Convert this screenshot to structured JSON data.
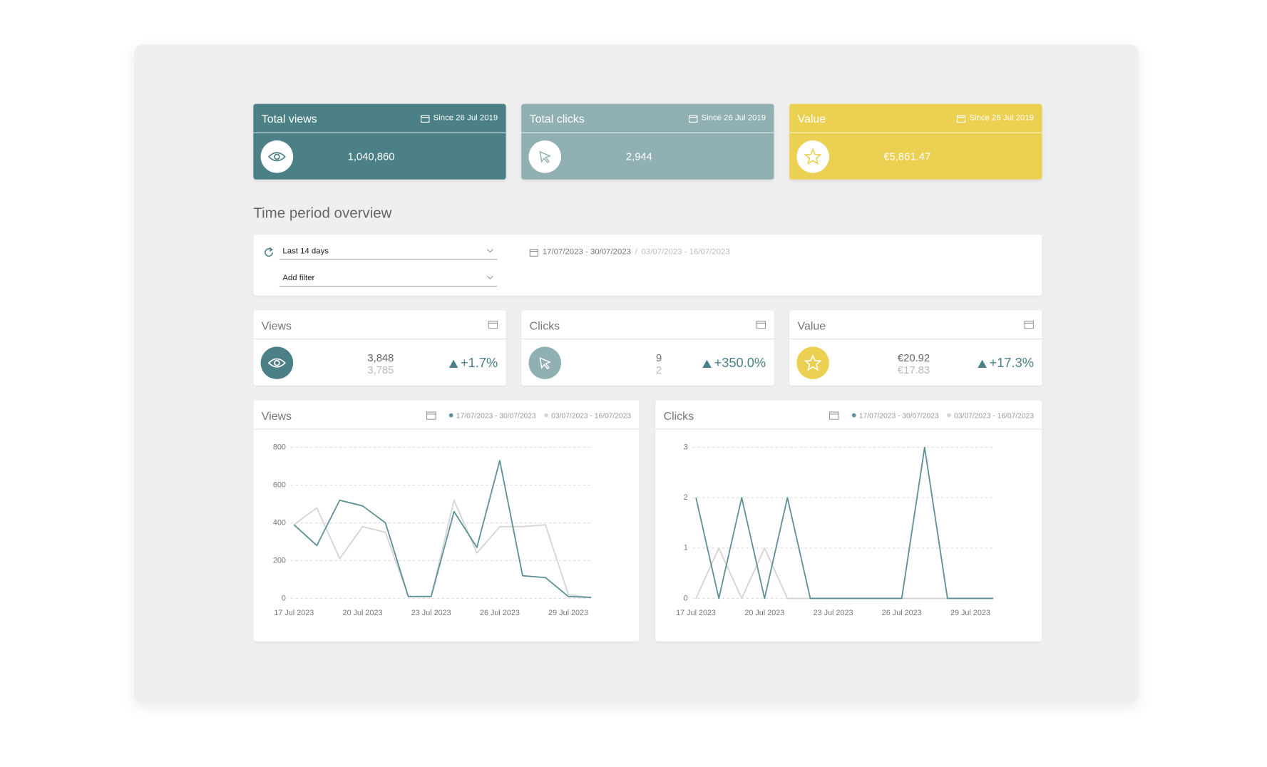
{
  "summary_cards": [
    {
      "title": "Total views",
      "since": "Since 26 Jul 2019",
      "value": "1,040,860"
    },
    {
      "title": "Total clicks",
      "since": "Since 26 Jul 2019",
      "value": "2,944"
    },
    {
      "title": "Value",
      "since": "Since 26 Jul 2019",
      "value": "€5,861.47"
    }
  ],
  "section_title": "Time period overview",
  "filters": {
    "period": "Last 14 days",
    "add_filter": "Add filter",
    "current_range": "17/07/2023 - 30/07/2023",
    "separator": "/",
    "previous_range": "03/07/2023 - 16/07/2023"
  },
  "stats": [
    {
      "title": "Views",
      "current": "3,848",
      "previous": "3,785",
      "change": "+1.7%"
    },
    {
      "title": "Clicks",
      "current": "9",
      "previous": "2",
      "change": "+350.0%"
    },
    {
      "title": "Value",
      "current": "€20.92",
      "previous": "€17.83",
      "change": "+17.3%"
    }
  ],
  "chart_data": [
    {
      "type": "line",
      "title": "Views",
      "categories": [
        "17 Jul 2023",
        null,
        null,
        "20 Jul 2023",
        null,
        null,
        "23 Jul 2023",
        null,
        null,
        "26 Jul 2023",
        null,
        null,
        "29 Jul 2023",
        null
      ],
      "series": [
        {
          "name": "17/07/2023 - 30/07/2023",
          "color": "#5e9196",
          "values": [
            390,
            280,
            520,
            490,
            400,
            10,
            10,
            460,
            270,
            730,
            120,
            110,
            10,
            5
          ]
        },
        {
          "name": "03/07/2023 - 16/07/2023",
          "color": "#d4d4d4",
          "values": [
            390,
            480,
            210,
            380,
            350,
            10,
            10,
            520,
            240,
            380,
            380,
            390,
            20,
            5
          ]
        }
      ],
      "ylim": [
        0,
        800
      ],
      "yticks": [
        0,
        200,
        400,
        600,
        800
      ],
      "grid": true
    },
    {
      "type": "line",
      "title": "Clicks",
      "categories": [
        "17 Jul 2023",
        null,
        null,
        "20 Jul 2023",
        null,
        null,
        "23 Jul 2023",
        null,
        null,
        "26 Jul 2023",
        null,
        null,
        "29 Jul 2023",
        null
      ],
      "series": [
        {
          "name": "17/07/2023 - 30/07/2023",
          "color": "#5e9196",
          "values": [
            2,
            0,
            2,
            0,
            2,
            0,
            0,
            0,
            0,
            0,
            3,
            0,
            0,
            0
          ]
        },
        {
          "name": "03/07/2023 - 16/07/2023",
          "color": "#d4d4d4",
          "values": [
            0,
            1,
            0,
            1,
            0,
            0,
            0,
            0,
            0,
            0,
            0,
            0,
            0,
            0
          ]
        }
      ],
      "ylim": [
        0,
        3
      ],
      "yticks": [
        0,
        1,
        2,
        3
      ],
      "grid": true
    }
  ]
}
